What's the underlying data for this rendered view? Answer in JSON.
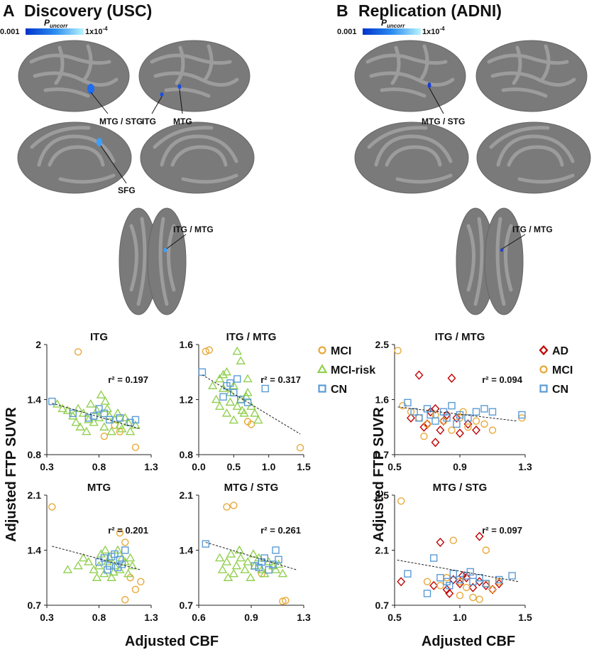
{
  "panels": [
    {
      "letter": "A",
      "title": "Discovery (USC)"
    },
    {
      "letter": "B",
      "title": "Replication (ADNI)"
    }
  ],
  "colorbar": {
    "label": "P",
    "label_sub": "uncorr",
    "min_label": "0.001",
    "max_label": "1x10",
    "max_exp": "-4"
  },
  "brain_labels": [
    [
      "MTG / STG",
      "ITG",
      "MTG",
      "SFG",
      "ITG / MTG"
    ],
    [
      "MTG / STG",
      "ITG /  MTG"
    ]
  ],
  "y_axis_label": "Adjusted FTP SUVR",
  "x_axis_label": "Adjusted CBF",
  "chart_data": [
    {
      "type": "scatter",
      "title": "ITG",
      "annotation": "r² = 0.197",
      "xlim": [
        0.3,
        1.3
      ],
      "xticks": [
        0.3,
        0.8,
        1.3
      ],
      "ylim": [
        0.8,
        2.0
      ],
      "yticks": [
        2.0,
        1.4,
        0.8
      ],
      "series": [
        {
          "name": "MCI",
          "color": "#e8a838",
          "marker": "circle",
          "x": [
            0.6,
            0.85,
            1.0,
            1.15,
            0.95
          ],
          "values": [
            1.92,
            1.0,
            1.05,
            0.88,
            1.12
          ]
        },
        {
          "name": "MCI-risk",
          "color": "#92d050",
          "marker": "triangle",
          "x": [
            0.4,
            0.45,
            0.5,
            0.55,
            0.6,
            0.62,
            0.65,
            0.7,
            0.72,
            0.75,
            0.78,
            0.8,
            0.82,
            0.85,
            0.88,
            0.9,
            0.92,
            0.95,
            0.98,
            1.0,
            1.02,
            1.05,
            1.08,
            1.1,
            1.15,
            0.58,
            0.68,
            0.86
          ],
          "values": [
            1.35,
            1.3,
            1.28,
            1.22,
            1.3,
            1.1,
            1.25,
            1.18,
            1.35,
            1.15,
            1.28,
            1.2,
            1.45,
            1.1,
            1.3,
            1.22,
            1.05,
            1.18,
            1.25,
            1.12,
            1.08,
            1.2,
            1.15,
            1.05,
            1.12,
            1.15,
            1.05,
            1.38
          ]
        },
        {
          "name": "CN",
          "color": "#5b9bd5",
          "marker": "square",
          "x": [
            0.35,
            0.55,
            0.7,
            0.75,
            0.8,
            0.85,
            0.9,
            1.0,
            1.1,
            1.15
          ],
          "values": [
            1.38,
            1.25,
            1.2,
            1.22,
            1.3,
            1.25,
            1.18,
            1.2,
            1.15,
            1.18
          ]
        }
      ],
      "fit": {
        "x": [
          0.35,
          1.2
        ],
        "values": [
          1.36,
          1.08
        ]
      }
    },
    {
      "type": "scatter",
      "title": "ITG / MTG",
      "annotation": "r² = 0.317",
      "legend": true,
      "xlim": [
        0.0,
        1.5
      ],
      "xticks": [
        {
          "value": 0.0,
          "label": "0.0"
        },
        0.5,
        {
          "value": 1.0,
          "label": "1.0"
        },
        1.5
      ],
      "ylim": [
        0.8,
        1.6
      ],
      "yticks": [
        1.6,
        1.2,
        0.8
      ],
      "series": [
        {
          "name": "MCI",
          "color": "#e8a838",
          "marker": "circle",
          "x": [
            0.1,
            0.15,
            0.7,
            0.75,
            1.45
          ],
          "values": [
            1.55,
            1.56,
            1.04,
            1.02,
            0.85
          ]
        },
        {
          "name": "MCI-risk",
          "color": "#92d050",
          "marker": "triangle",
          "x": [
            0.2,
            0.25,
            0.3,
            0.3,
            0.35,
            0.4,
            0.4,
            0.45,
            0.5,
            0.5,
            0.55,
            0.6,
            0.6,
            0.65,
            0.7,
            0.7,
            0.75,
            0.8,
            0.85,
            0.55,
            0.45,
            0.35,
            0.62,
            0.68
          ],
          "values": [
            1.3,
            1.2,
            1.35,
            1.15,
            1.28,
            1.1,
            1.4,
            1.25,
            1.3,
            1.05,
            1.15,
            1.48,
            1.2,
            1.1,
            1.25,
            1.35,
            1.15,
            1.1,
            1.05,
            1.55,
            1.18,
            1.38,
            1.12,
            1.22
          ]
        },
        {
          "name": "CN",
          "color": "#5b9bd5",
          "marker": "square",
          "x": [
            0.05,
            0.35,
            0.4,
            0.45,
            0.5,
            0.55,
            0.6,
            0.7,
            0.95
          ],
          "values": [
            1.4,
            1.22,
            1.3,
            1.32,
            1.25,
            1.35,
            1.2,
            1.18,
            1.28
          ]
        }
      ],
      "fit": {
        "x": [
          0.05,
          1.45
        ],
        "values": [
          1.38,
          0.95
        ]
      }
    },
    {
      "type": "scatter",
      "title": "MTG",
      "annotation": "r² = 0.201",
      "xlim": [
        0.3,
        1.3
      ],
      "xticks": [
        0.3,
        0.8,
        1.3
      ],
      "ylim": [
        0.7,
        2.1
      ],
      "yticks": [
        2.1,
        1.4,
        0.7
      ],
      "series": [
        {
          "name": "MCI",
          "color": "#e8a838",
          "marker": "circle",
          "x": [
            0.35,
            1.0,
            1.05,
            1.1,
            1.15,
            1.05,
            1.2
          ],
          "values": [
            1.95,
            1.62,
            1.5,
            1.05,
            0.9,
            0.77,
            1.0
          ]
        },
        {
          "name": "MCI-risk",
          "color": "#92d050",
          "marker": "triangle",
          "x": [
            0.5,
            0.6,
            0.65,
            0.7,
            0.75,
            0.8,
            0.82,
            0.85,
            0.88,
            0.9,
            0.92,
            0.95,
            0.98,
            1.0,
            1.02,
            1.05,
            1.08,
            1.1,
            0.78,
            0.86,
            0.94,
            1.12
          ],
          "values": [
            1.15,
            1.2,
            1.3,
            1.25,
            1.15,
            1.2,
            1.35,
            1.1,
            1.25,
            1.3,
            1.05,
            1.2,
            1.4,
            1.15,
            1.3,
            1.25,
            1.1,
            1.3,
            1.05,
            1.4,
            1.12,
            1.2
          ]
        },
        {
          "name": "CN",
          "color": "#5b9bd5",
          "marker": "square",
          "x": [
            0.8,
            0.85,
            0.9,
            0.95,
            1.0,
            1.02,
            1.05,
            0.88,
            0.92,
            0.98
          ],
          "values": [
            1.25,
            1.3,
            1.2,
            1.35,
            1.28,
            1.22,
            1.4,
            1.15,
            1.32,
            1.18
          ]
        }
      ],
      "fit": {
        "x": [
          0.35,
          1.2
        ],
        "values": [
          1.45,
          1.15
        ]
      }
    },
    {
      "type": "scatter",
      "title": "MTG / STG",
      "annotation": "r² = 0.261",
      "xlim": [
        0.55,
        1.3
      ],
      "xticks": [
        {
          "value": 0.55,
          "label": "0.6"
        },
        {
          "value": 0.925,
          "label": "0.9"
        },
        1.3
      ],
      "ylim": [
        0.7,
        2.1
      ],
      "yticks": [
        2.1,
        1.4,
        0.7
      ],
      "series": [
        {
          "name": "MCI",
          "color": "#e8a838",
          "marker": "circle",
          "x": [
            0.75,
            0.8,
            1.0,
            1.15,
            1.17
          ],
          "values": [
            1.95,
            1.97,
            1.1,
            0.75,
            0.76
          ]
        },
        {
          "name": "MCI-risk",
          "color": "#92d050",
          "marker": "triangle",
          "x": [
            0.7,
            0.72,
            0.75,
            0.78,
            0.8,
            0.82,
            0.85,
            0.88,
            0.9,
            0.92,
            0.95,
            0.98,
            1.0,
            1.02,
            1.05,
            1.08,
            1.1,
            1.15,
            0.84,
            0.94,
            0.76,
            1.12
          ],
          "values": [
            1.3,
            1.15,
            1.25,
            1.35,
            1.1,
            1.2,
            1.3,
            1.15,
            1.25,
            1.05,
            1.2,
            1.3,
            1.15,
            1.1,
            1.25,
            1.2,
            1.15,
            1.1,
            1.4,
            1.35,
            1.05,
            1.22
          ]
        },
        {
          "name": "CN",
          "color": "#5b9bd5",
          "marker": "square",
          "x": [
            0.6,
            0.95,
            1.0,
            1.02,
            1.05,
            1.08,
            1.1,
            0.98,
            1.12
          ],
          "values": [
            1.48,
            1.2,
            1.25,
            1.3,
            1.15,
            1.22,
            1.4,
            1.18,
            1.28
          ]
        }
      ],
      "fit": {
        "x": [
          0.6,
          1.25
        ],
        "values": [
          1.5,
          1.15
        ]
      }
    },
    {
      "type": "scatter",
      "title": "ITG / MTG",
      "annotation": "r² = 0.094",
      "legend": true,
      "xlim": [
        0.5,
        1.3
      ],
      "xticks": [
        0.5,
        0.9,
        1.3
      ],
      "ylim": [
        0.7,
        2.5
      ],
      "yticks": [
        2.5,
        1.6,
        0.7
      ],
      "series": [
        {
          "name": "AD",
          "color": "#c00000",
          "marker": "diamond",
          "x": [
            0.6,
            0.65,
            0.7,
            0.72,
            0.75,
            0.78,
            0.8,
            0.85,
            0.88,
            0.9,
            0.95,
            1.0,
            0.68,
            0.82,
            0.75
          ],
          "values": [
            1.3,
            2.0,
            1.2,
            1.4,
            0.9,
            1.1,
            1.25,
            1.95,
            1.3,
            1.05,
            1.2,
            1.1,
            1.15,
            1.35,
            1.45
          ]
        },
        {
          "name": "MCI",
          "color": "#e8a838",
          "marker": "circle",
          "x": [
            0.52,
            0.55,
            0.6,
            0.65,
            0.7,
            0.75,
            0.8,
            0.85,
            0.9,
            0.95,
            1.0,
            1.05,
            1.1,
            1.28,
            0.68,
            0.92
          ],
          "values": [
            2.4,
            1.5,
            1.4,
            1.3,
            1.2,
            1.35,
            1.25,
            1.1,
            1.3,
            1.15,
            1.25,
            1.2,
            1.1,
            1.3,
            1.0,
            1.4
          ]
        },
        {
          "name": "CN",
          "color": "#5b9bd5",
          "marker": "square",
          "x": [
            0.58,
            0.62,
            0.65,
            0.7,
            0.72,
            0.75,
            0.8,
            0.82,
            0.85,
            0.9,
            0.95,
            1.0,
            1.05,
            1.1,
            1.28,
            0.88
          ],
          "values": [
            1.55,
            1.4,
            1.3,
            1.45,
            1.35,
            1.25,
            1.4,
            1.3,
            1.5,
            1.35,
            1.3,
            1.4,
            1.45,
            1.4,
            1.35,
            1.2
          ]
        }
      ],
      "fit": {
        "x": [
          0.52,
          1.25
        ],
        "values": [
          1.48,
          1.25
        ]
      }
    },
    {
      "type": "scatter",
      "title": "MTG / STG",
      "annotation": "r² = 0.097",
      "xlim": [
        0.5,
        1.5
      ],
      "xticks": [
        0.5,
        {
          "value": 1.0,
          "label": "1.0"
        },
        1.5
      ],
      "ylim": [
        0.7,
        3.5
      ],
      "yticks": [
        3.5,
        2.1,
        0.7
      ],
      "series": [
        {
          "name": "AD",
          "color": "#c00000",
          "marker": "diamond",
          "x": [
            0.55,
            0.85,
            1.15,
            0.8,
            0.9,
            0.95,
            1.0,
            1.05,
            1.1,
            1.15,
            1.2,
            1.25,
            1.3,
            0.92,
            1.02
          ],
          "values": [
            1.3,
            2.3,
            2.45,
            1.2,
            1.1,
            1.35,
            1.25,
            1.4,
            1.15,
            1.3,
            1.2,
            1.1,
            1.25,
            1.0,
            1.45
          ]
        },
        {
          "name": "MCI",
          "color": "#e8a838",
          "marker": "circle",
          "x": [
            0.55,
            0.95,
            1.2,
            0.75,
            0.85,
            0.9,
            1.0,
            1.05,
            1.1,
            1.2,
            1.25,
            1.3,
            1.0,
            1.15
          ],
          "values": [
            3.35,
            2.35,
            2.1,
            1.3,
            1.2,
            1.4,
            1.3,
            1.15,
            0.9,
            1.25,
            1.1,
            1.3,
            0.95,
            0.85
          ]
        },
        {
          "name": "CN",
          "color": "#5b9bd5",
          "marker": "square",
          "x": [
            0.6,
            0.8,
            0.85,
            0.9,
            0.95,
            1.0,
            1.05,
            1.1,
            1.15,
            1.2,
            1.3,
            1.4,
            0.92,
            1.08,
            0.75
          ],
          "values": [
            1.5,
            1.9,
            1.4,
            1.3,
            1.5,
            1.35,
            1.45,
            1.3,
            1.4,
            1.25,
            1.35,
            1.45,
            1.2,
            1.55,
            1.0
          ]
        }
      ],
      "fit": {
        "x": [
          0.52,
          1.45
        ],
        "values": [
          1.85,
          1.3
        ]
      }
    }
  ]
}
